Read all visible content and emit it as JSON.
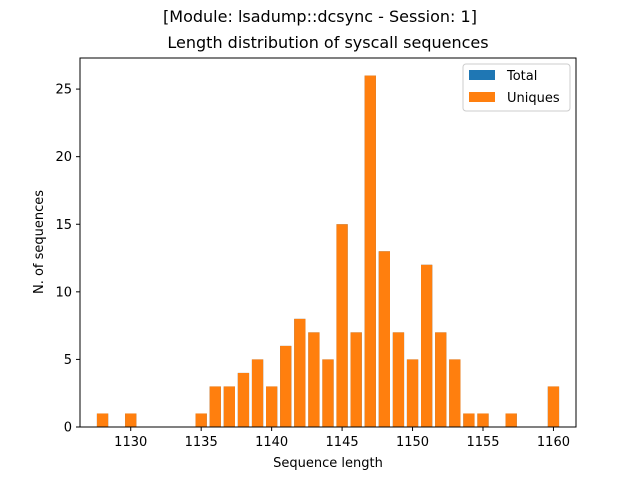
{
  "figure": {
    "suptitle": "[Module: lsadump::dcsync - Session: 1]"
  },
  "chart_data": {
    "type": "bar",
    "title": "Length distribution of syscall sequences",
    "xlabel": "Sequence length",
    "ylabel": "N. of sequences",
    "xlim": [
      1126.4,
      1161.6
    ],
    "ylim": [
      0,
      27.3
    ],
    "xticks": [
      1130,
      1135,
      1140,
      1145,
      1150,
      1155,
      1160
    ],
    "yticks": [
      0,
      5,
      10,
      15,
      20,
      25
    ],
    "grid": false,
    "legend": {
      "position": "top-right",
      "entries": [
        "Total",
        "Uniques"
      ]
    },
    "colors": {
      "Total": "#1f77b4",
      "Uniques": "#ff7f0e"
    },
    "x": [
      1128,
      1130,
      1135,
      1136,
      1137,
      1138,
      1139,
      1140,
      1141,
      1142,
      1143,
      1144,
      1145,
      1146,
      1147,
      1148,
      1149,
      1150,
      1151,
      1152,
      1153,
      1154,
      1155,
      1157,
      1160
    ],
    "series": [
      {
        "name": "Total",
        "values": [
          1,
          1,
          1,
          3,
          3,
          4,
          5,
          3,
          6,
          8,
          7,
          5,
          15,
          7,
          26,
          13,
          7,
          5,
          12,
          7,
          5,
          1,
          1,
          1,
          3
        ]
      },
      {
        "name": "Uniques",
        "values": [
          1,
          1,
          1,
          3,
          3,
          4,
          5,
          3,
          6,
          8,
          7,
          5,
          15,
          7,
          26,
          13,
          7,
          5,
          12,
          7,
          5,
          1,
          1,
          1,
          3
        ]
      }
    ]
  }
}
